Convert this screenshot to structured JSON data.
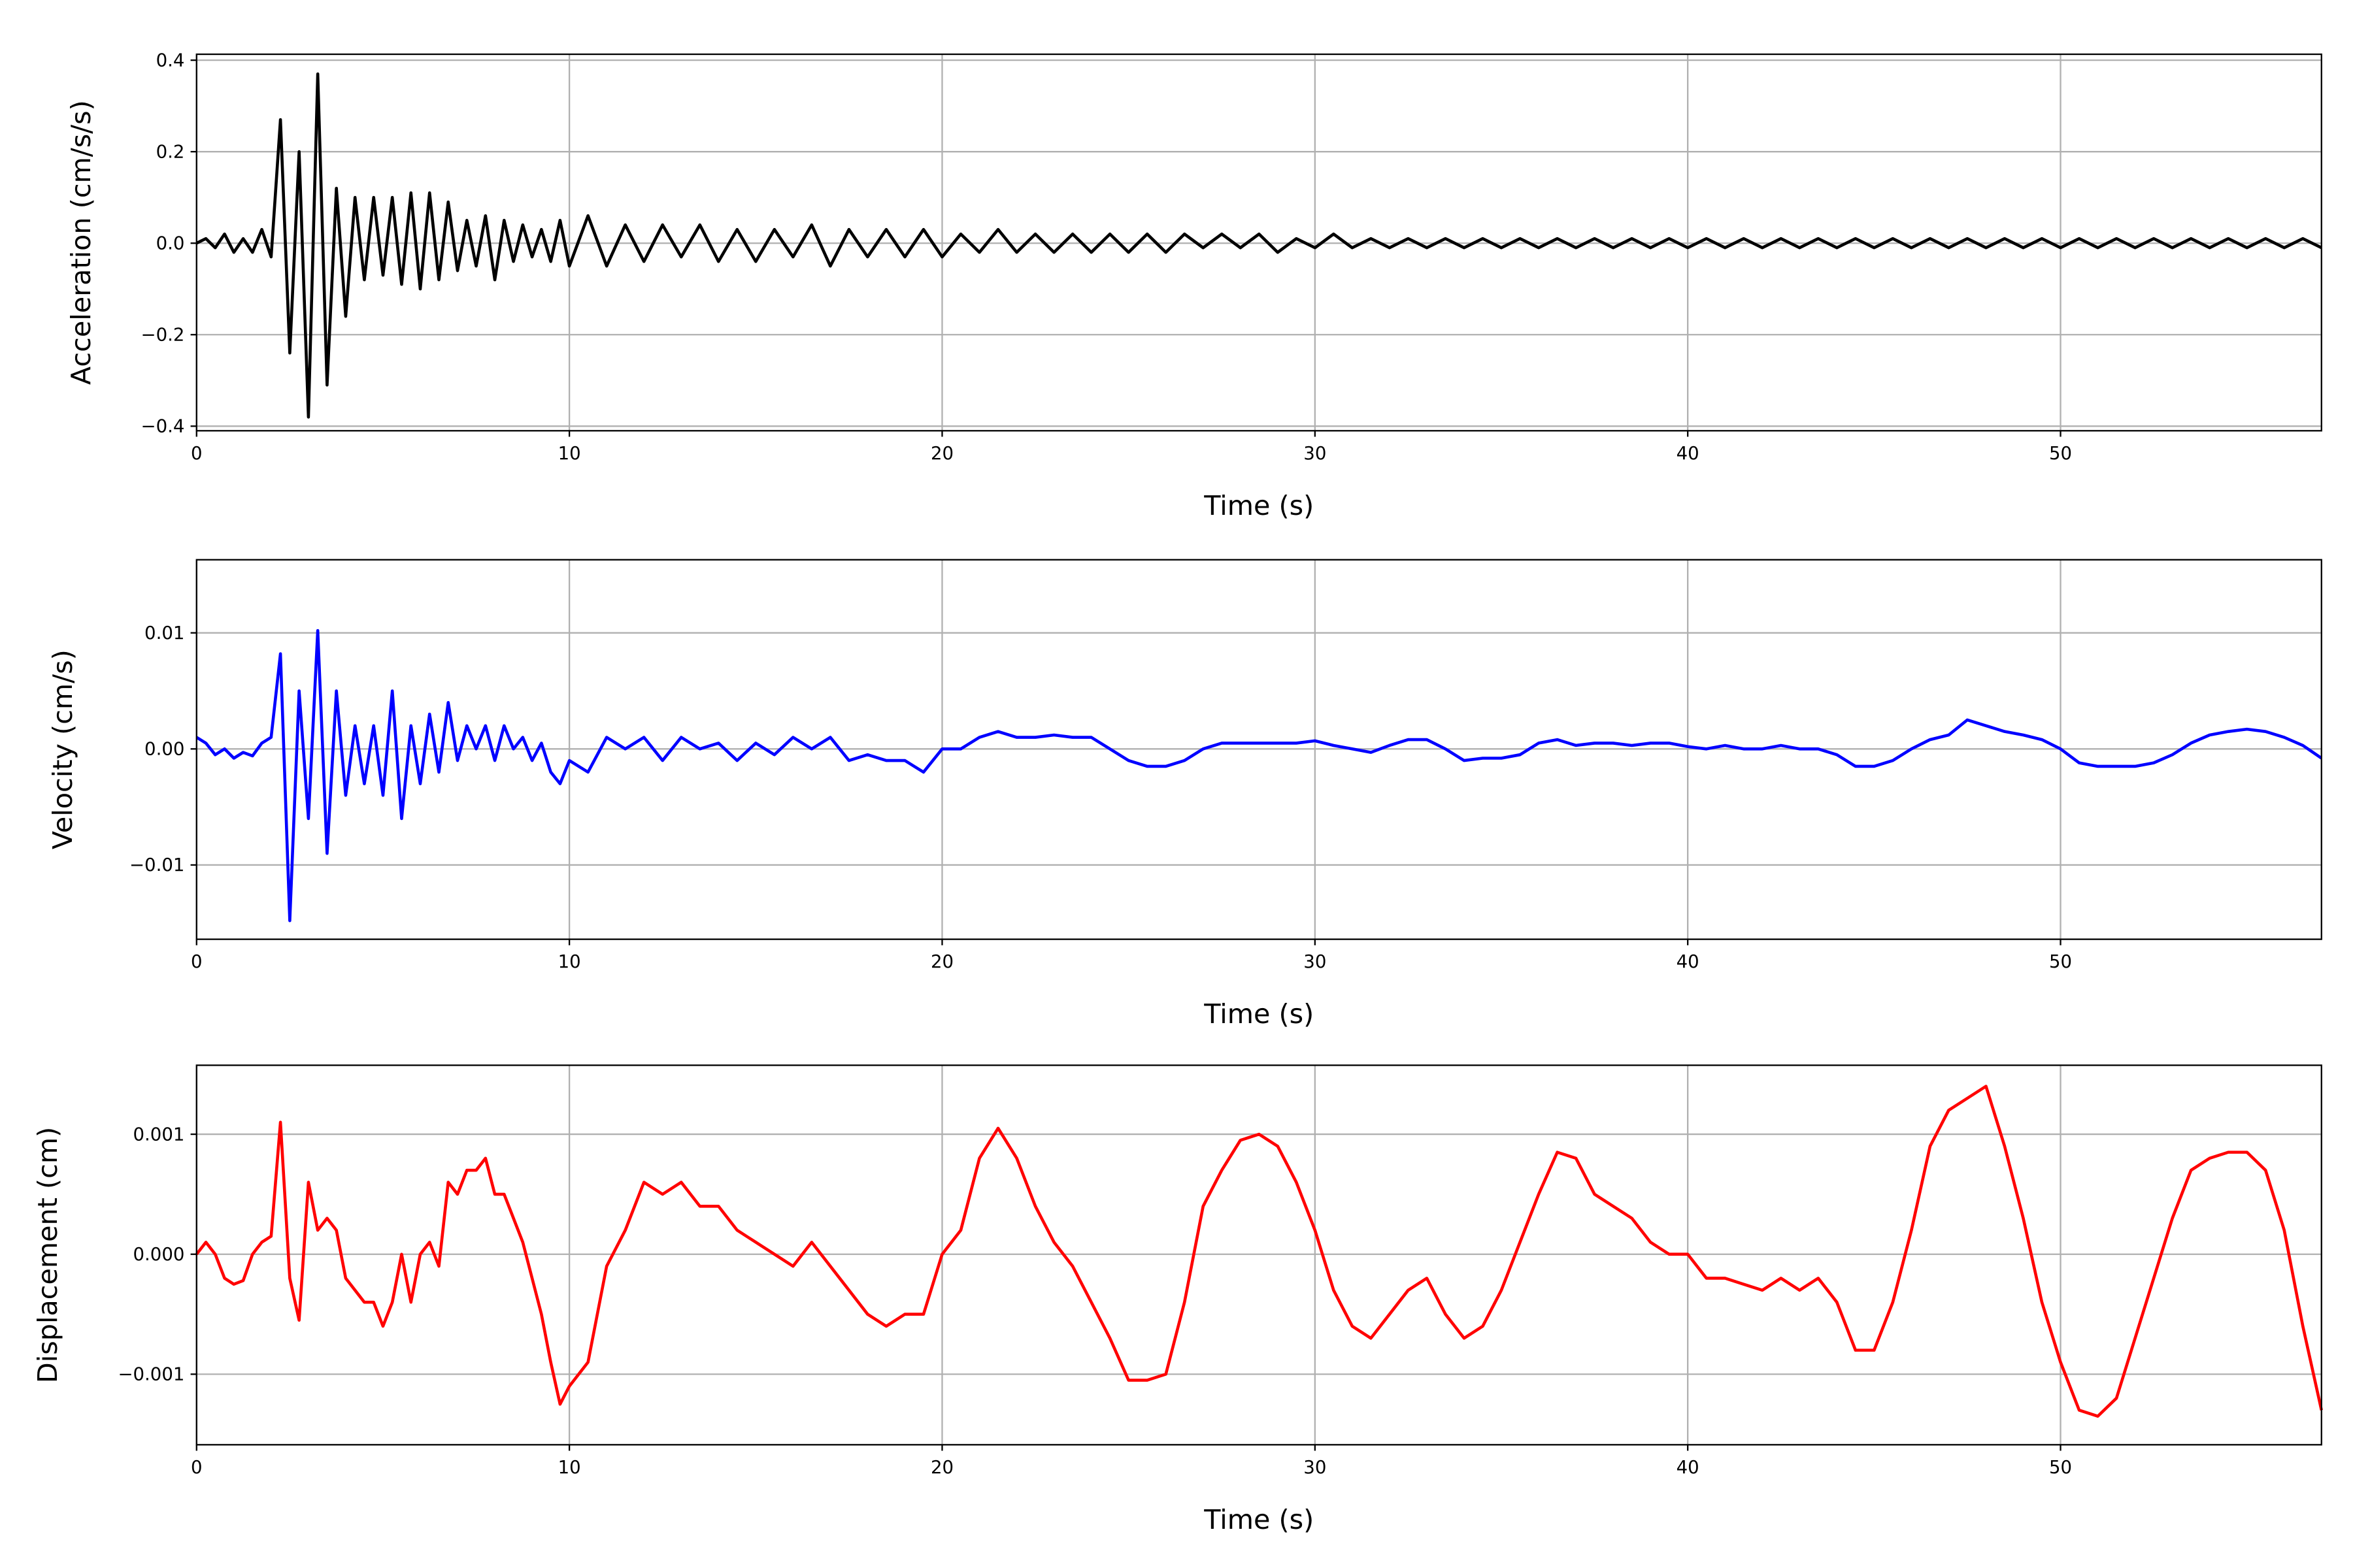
{
  "chart_data": [
    {
      "type": "line",
      "xlabel": "Time (s)",
      "ylabel": "Acceleration (cm/s/s)",
      "color": "#000000",
      "grid": true,
      "xlim": [
        0,
        57
      ],
      "xticks": [
        0,
        10,
        20,
        30,
        40,
        50
      ],
      "ylim": [
        -0.41,
        0.413
      ],
      "yticks": [
        {
          "value": -0.4,
          "label": "−0.4"
        },
        {
          "value": -0.2,
          "label": "−0.2"
        },
        {
          "value": 0,
          "label": "0.0"
        },
        0.2,
        0.4
      ],
      "x": [
        0,
        0.25,
        0.5,
        0.75,
        1,
        1.25,
        1.5,
        1.75,
        2,
        2.25,
        2.5,
        2.75,
        3,
        3.25,
        3.5,
        3.75,
        4,
        4.25,
        4.5,
        4.75,
        5,
        5.25,
        5.5,
        5.75,
        6,
        6.25,
        6.5,
        6.75,
        7,
        7.25,
        7.5,
        7.75,
        8,
        8.25,
        8.5,
        8.75,
        9,
        9.25,
        9.5,
        9.75,
        10,
        10.5,
        11,
        11.5,
        12,
        12.5,
        13,
        13.5,
        14,
        14.5,
        15,
        15.5,
        16,
        16.5,
        17,
        17.5,
        18,
        18.5,
        19,
        19.5,
        20,
        20.5,
        21,
        21.5,
        22,
        22.5,
        23,
        23.5,
        24,
        24.5,
        25,
        25.5,
        26,
        26.5,
        27,
        27.5,
        28,
        28.5,
        29,
        29.5,
        30,
        30.5,
        31,
        31.5,
        32,
        32.5,
        33,
        33.5,
        34,
        34.5,
        35,
        35.5,
        36,
        36.5,
        37,
        37.5,
        38,
        38.5,
        39,
        39.5,
        40,
        40.5,
        41,
        41.5,
        42,
        42.5,
        43,
        43.5,
        44,
        44.5,
        45,
        45.5,
        46,
        46.5,
        47,
        47.5,
        48,
        48.5,
        49,
        49.5,
        50,
        50.5,
        51,
        51.5,
        52,
        52.5,
        53,
        53.5,
        54,
        54.5,
        55,
        55.5,
        56,
        56.5,
        57
      ],
      "values": [
        0,
        0.01,
        -0.01,
        0.02,
        -0.02,
        0.01,
        -0.02,
        0.03,
        -0.03,
        0.27,
        -0.24,
        0.2,
        -0.38,
        0.37,
        -0.31,
        0.12,
        -0.16,
        0.1,
        -0.08,
        0.1,
        -0.07,
        0.1,
        -0.09,
        0.11,
        -0.1,
        0.11,
        -0.08,
        0.09,
        -0.06,
        0.05,
        -0.05,
        0.06,
        -0.08,
        0.05,
        -0.04,
        0.04,
        -0.03,
        0.03,
        -0.04,
        0.05,
        -0.05,
        0.06,
        -0.05,
        0.04,
        -0.04,
        0.04,
        -0.03,
        0.04,
        -0.04,
        0.03,
        -0.04,
        0.03,
        -0.03,
        0.04,
        -0.05,
        0.03,
        -0.03,
        0.03,
        -0.03,
        0.03,
        -0.03,
        0.02,
        -0.02,
        0.03,
        -0.02,
        0.02,
        -0.02,
        0.02,
        -0.02,
        0.02,
        -0.02,
        0.02,
        -0.02,
        0.02,
        -0.01,
        0.02,
        -0.01,
        0.02,
        -0.02,
        0.01,
        -0.01,
        0.02,
        -0.01,
        0.01,
        -0.01,
        0.01,
        -0.01,
        0.01,
        -0.01,
        0.01,
        -0.01,
        0.01,
        -0.01,
        0.01,
        -0.01,
        0.01,
        -0.01,
        0.01,
        -0.01,
        0.01,
        -0.01,
        0.01,
        -0.01,
        0.01,
        -0.01,
        0.01,
        -0.01,
        0.01,
        -0.01,
        0.01,
        -0.01,
        0.01,
        -0.01,
        0.01,
        -0.01,
        0.01,
        -0.01,
        0.01,
        -0.01,
        0.01,
        -0.01,
        0.01,
        -0.01,
        0.01,
        -0.01,
        0.01,
        -0.01,
        0.01,
        -0.01,
        0.01,
        -0.01,
        0.01,
        -0.01,
        0.01,
        -0.01
      ]
    },
    {
      "type": "line",
      "xlabel": "Time (s)",
      "ylabel": "Velocity (cm/s)",
      "color": "#0000ff",
      "grid": true,
      "xlim": [
        0,
        57
      ],
      "xticks": [
        0,
        10,
        20,
        30,
        40,
        50
      ],
      "ylim": [
        -0.0164,
        0.0163
      ],
      "yticks": [
        {
          "value": -0.01,
          "label": "−0.01"
        },
        {
          "value": 0,
          "label": "0.00"
        },
        0.01
      ],
      "x": [
        0,
        0.25,
        0.5,
        0.75,
        1,
        1.25,
        1.5,
        1.75,
        2,
        2.25,
        2.5,
        2.75,
        3,
        3.25,
        3.5,
        3.75,
        4,
        4.25,
        4.5,
        4.75,
        5,
        5.25,
        5.5,
        5.75,
        6,
        6.25,
        6.5,
        6.75,
        7,
        7.25,
        7.5,
        7.75,
        8,
        8.25,
        8.5,
        8.75,
        9,
        9.25,
        9.5,
        9.75,
        10,
        10.5,
        11,
        11.5,
        12,
        12.5,
        13,
        13.5,
        14,
        14.5,
        15,
        15.5,
        16,
        16.5,
        17,
        17.5,
        18,
        18.5,
        19,
        19.5,
        20,
        20.5,
        21,
        21.5,
        22,
        22.5,
        23,
        23.5,
        24,
        24.5,
        25,
        25.5,
        26,
        26.5,
        27,
        27.5,
        28,
        28.5,
        29,
        29.5,
        30,
        30.5,
        31,
        31.5,
        32,
        32.5,
        33,
        33.5,
        34,
        34.5,
        35,
        35.5,
        36,
        36.5,
        37,
        37.5,
        38,
        38.5,
        39,
        39.5,
        40,
        40.5,
        41,
        41.5,
        42,
        42.5,
        43,
        43.5,
        44,
        44.5,
        45,
        45.5,
        46,
        46.5,
        47,
        47.5,
        48,
        48.5,
        49,
        49.5,
        50,
        50.5,
        51,
        51.5,
        52,
        52.5,
        53,
        53.5,
        54,
        54.5,
        55,
        55.5,
        56,
        56.5,
        57
      ],
      "values": [
        0.001,
        0.0005,
        -0.0005,
        0,
        -0.0008,
        -0.0003,
        -0.0006,
        0.0005,
        0.001,
        0.0082,
        -0.0148,
        0.005,
        -0.006,
        0.0102,
        -0.009,
        0.005,
        -0.004,
        0.002,
        -0.003,
        0.002,
        -0.004,
        0.005,
        -0.006,
        0.002,
        -0.003,
        0.003,
        -0.002,
        0.004,
        -0.001,
        0.002,
        0,
        0.002,
        -0.001,
        0.002,
        0,
        0.001,
        -0.001,
        0.0005,
        -0.002,
        -0.003,
        -0.001,
        -0.002,
        0.001,
        0,
        0.001,
        -0.001,
        0.001,
        0,
        0.0005,
        -0.001,
        0.0005,
        -0.0005,
        0.001,
        0,
        0.001,
        -0.001,
        -0.0005,
        -0.001,
        -0.001,
        -0.002,
        0,
        0,
        0.001,
        0.0015,
        0.001,
        0.001,
        0.0012,
        0.001,
        0.001,
        0,
        -0.001,
        -0.0015,
        -0.0015,
        -0.001,
        0,
        0.0005,
        0.0005,
        0.0005,
        0.0005,
        0.0005,
        0.0007,
        0.0003,
        0,
        -0.0003,
        0.0003,
        0.0008,
        0.0008,
        0,
        -0.001,
        -0.0008,
        -0.0008,
        -0.0005,
        0.0005,
        0.0008,
        0.0003,
        0.0005,
        0.0005,
        0.0003,
        0.0005,
        0.0005,
        0.0002,
        0,
        0.0003,
        0,
        0,
        0.0003,
        0,
        0,
        -0.0005,
        -0.0015,
        -0.0015,
        -0.001,
        0,
        0.0008,
        0.0012,
        0.0025,
        0.002,
        0.0015,
        0.0012,
        0.0008,
        0,
        -0.0012,
        -0.0015,
        -0.0015,
        -0.0015,
        -0.0012,
        -0.0005,
        0.0005,
        0.0012,
        0.0015,
        0.0017,
        0.0015,
        0.001,
        0.0003,
        -0.0008
      ]
    },
    {
      "type": "line",
      "xlabel": "Time (s)",
      "ylabel": "Displacement (cm)",
      "color": "#ff0000",
      "grid": true,
      "xlim": [
        0,
        57
      ],
      "xticks": [
        0,
        10,
        20,
        30,
        40,
        50
      ],
      "ylim": [
        -0.001588,
        0.001575
      ],
      "yticks": [
        {
          "value": -0.001,
          "label": "−0.001"
        },
        {
          "value": 0,
          "label": "0.000"
        },
        0.001
      ],
      "x": [
        0,
        0.25,
        0.5,
        0.75,
        1,
        1.25,
        1.5,
        1.75,
        2,
        2.25,
        2.5,
        2.75,
        3,
        3.25,
        3.5,
        3.75,
        4,
        4.25,
        4.5,
        4.75,
        5,
        5.25,
        5.5,
        5.75,
        6,
        6.25,
        6.5,
        6.75,
        7,
        7.25,
        7.5,
        7.75,
        8,
        8.25,
        8.5,
        8.75,
        9,
        9.25,
        9.5,
        9.75,
        10,
        10.5,
        11,
        11.5,
        12,
        12.5,
        13,
        13.5,
        14,
        14.5,
        15,
        15.5,
        16,
        16.5,
        17,
        17.5,
        18,
        18.5,
        19,
        19.5,
        20,
        20.5,
        21,
        21.5,
        22,
        22.5,
        23,
        23.5,
        24,
        24.5,
        25,
        25.5,
        26,
        26.5,
        27,
        27.5,
        28,
        28.5,
        29,
        29.5,
        30,
        30.5,
        31,
        31.5,
        32,
        32.5,
        33,
        33.5,
        34,
        34.5,
        35,
        35.5,
        36,
        36.5,
        37,
        37.5,
        38,
        38.5,
        39,
        39.5,
        40,
        40.5,
        41,
        41.5,
        42,
        42.5,
        43,
        43.5,
        44,
        44.5,
        45,
        45.5,
        46,
        46.5,
        47,
        47.5,
        48,
        48.5,
        49,
        49.5,
        50,
        50.5,
        51,
        51.5,
        52,
        52.5,
        53,
        53.5,
        54,
        54.5,
        55,
        55.5,
        56,
        56.5,
        57
      ],
      "values": [
        0,
        0.0001,
        0,
        -0.0002,
        -0.00025,
        -0.00022,
        0,
        0.0001,
        0.00015,
        0.0011,
        -0.0002,
        -0.00055,
        0.0006,
        0.0002,
        0.0003,
        0.0002,
        -0.0002,
        -0.0003,
        -0.0004,
        -0.0004,
        -0.0006,
        -0.0004,
        0,
        -0.0004,
        0,
        0.0001,
        -0.0001,
        0.0006,
        0.0005,
        0.0007,
        0.0007,
        0.0008,
        0.0005,
        0.0005,
        0.0003,
        0.0001,
        -0.0002,
        -0.0005,
        -0.0009,
        -0.00125,
        -0.0011,
        -0.0009,
        -0.0001,
        0.0002,
        0.0006,
        0.0005,
        0.0006,
        0.0004,
        0.0004,
        0.0002,
        0.0001,
        0,
        -0.0001,
        0.0001,
        -0.0001,
        -0.0003,
        -0.0005,
        -0.0006,
        -0.0005,
        -0.0005,
        0,
        0.0002,
        0.0008,
        0.00105,
        0.0008,
        0.0004,
        0.0001,
        -0.0001,
        -0.0004,
        -0.0007,
        -0.00105,
        -0.00105,
        -0.001,
        -0.0004,
        0.0004,
        0.0007,
        0.00095,
        0.001,
        0.0009,
        0.0006,
        0.0002,
        -0.0003,
        -0.0006,
        -0.0007,
        -0.0005,
        -0.0003,
        -0.0002,
        -0.0005,
        -0.0007,
        -0.0006,
        -0.0003,
        0.0001,
        0.0005,
        0.00085,
        0.0008,
        0.0005,
        0.0004,
        0.0003,
        0.0001,
        0,
        0,
        -0.0002,
        -0.0002,
        -0.00025,
        -0.0003,
        -0.0002,
        -0.0003,
        -0.0002,
        -0.0004,
        -0.0008,
        -0.0008,
        -0.0004,
        0.0002,
        0.0009,
        0.0012,
        0.0013,
        0.0014,
        0.0009,
        0.0003,
        -0.0004,
        -0.0009,
        -0.0013,
        -0.00135,
        -0.0012,
        -0.0007,
        -0.0002,
        0.0003,
        0.0007,
        0.0008,
        0.00085,
        0.00085,
        0.0007,
        0.0002,
        -0.0006,
        -0.0013
      ]
    }
  ]
}
